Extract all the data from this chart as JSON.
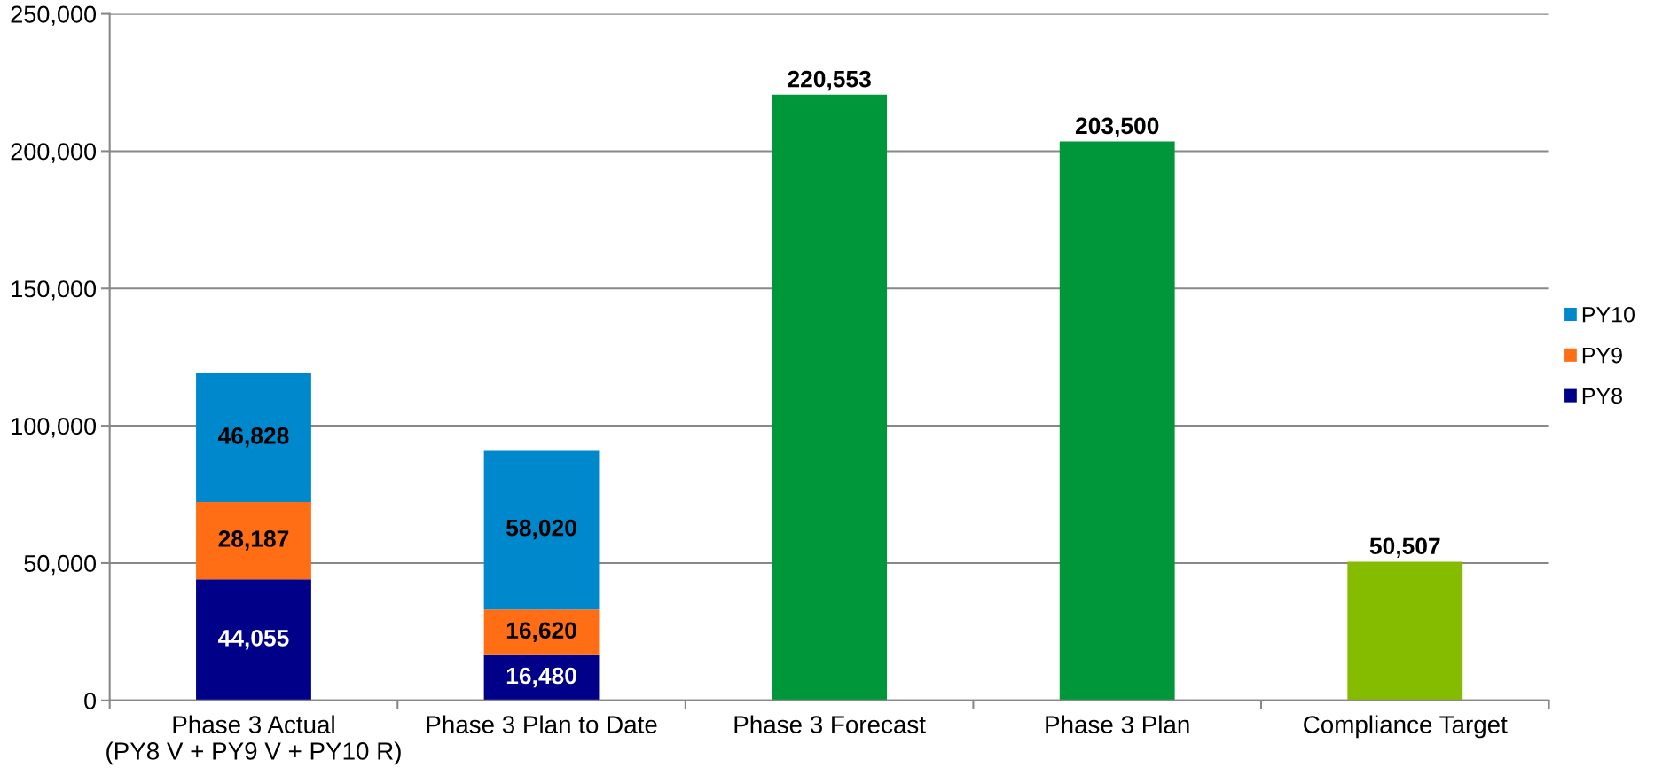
{
  "chart_data": {
    "type": "bar",
    "stacked": true,
    "categories": [
      "Phase 3 Actual\n(PY8 V + PY9 V + PY10 R)",
      "Phase 3 Plan to Date",
      "Phase 3 Forecast",
      "Phase 3 Plan",
      "Compliance Target"
    ],
    "series": [
      {
        "name": "PY8",
        "color": "#000088",
        "values": [
          44055,
          16480,
          null,
          null,
          null
        ],
        "value_labels": [
          "44,055",
          "16,480",
          null,
          null,
          null
        ]
      },
      {
        "name": "PY9",
        "color": "#ff6d14",
        "values": [
          28187,
          16620,
          null,
          null,
          null
        ],
        "value_labels": [
          "28,187",
          "16,620",
          null,
          null,
          null
        ]
      },
      {
        "name": "PY10",
        "color": "#0088cc",
        "values": [
          46828,
          58020,
          null,
          null,
          null
        ],
        "value_labels": [
          "46,828",
          "58,020",
          null,
          null,
          null
        ]
      },
      {
        "colors": [
          null,
          null,
          "#00963a",
          "#00963a",
          "#86bc00"
        ],
        "values": [
          null,
          null,
          220553,
          203500,
          50507
        ],
        "value_labels": [
          null,
          null,
          "220,553",
          "203,500",
          "50,507"
        ]
      }
    ],
    "ylim": [
      0,
      250000
    ],
    "yticks": [
      0,
      {
        "value": 50000,
        "label": "50,000"
      },
      {
        "value": 100000,
        "label": "100,000"
      },
      {
        "value": 150000,
        "label": "150,000"
      },
      {
        "value": 200000,
        "label": "200,000"
      },
      {
        "value": 250000,
        "label": "250,000"
      }
    ],
    "grid": "y",
    "legend": "right"
  }
}
